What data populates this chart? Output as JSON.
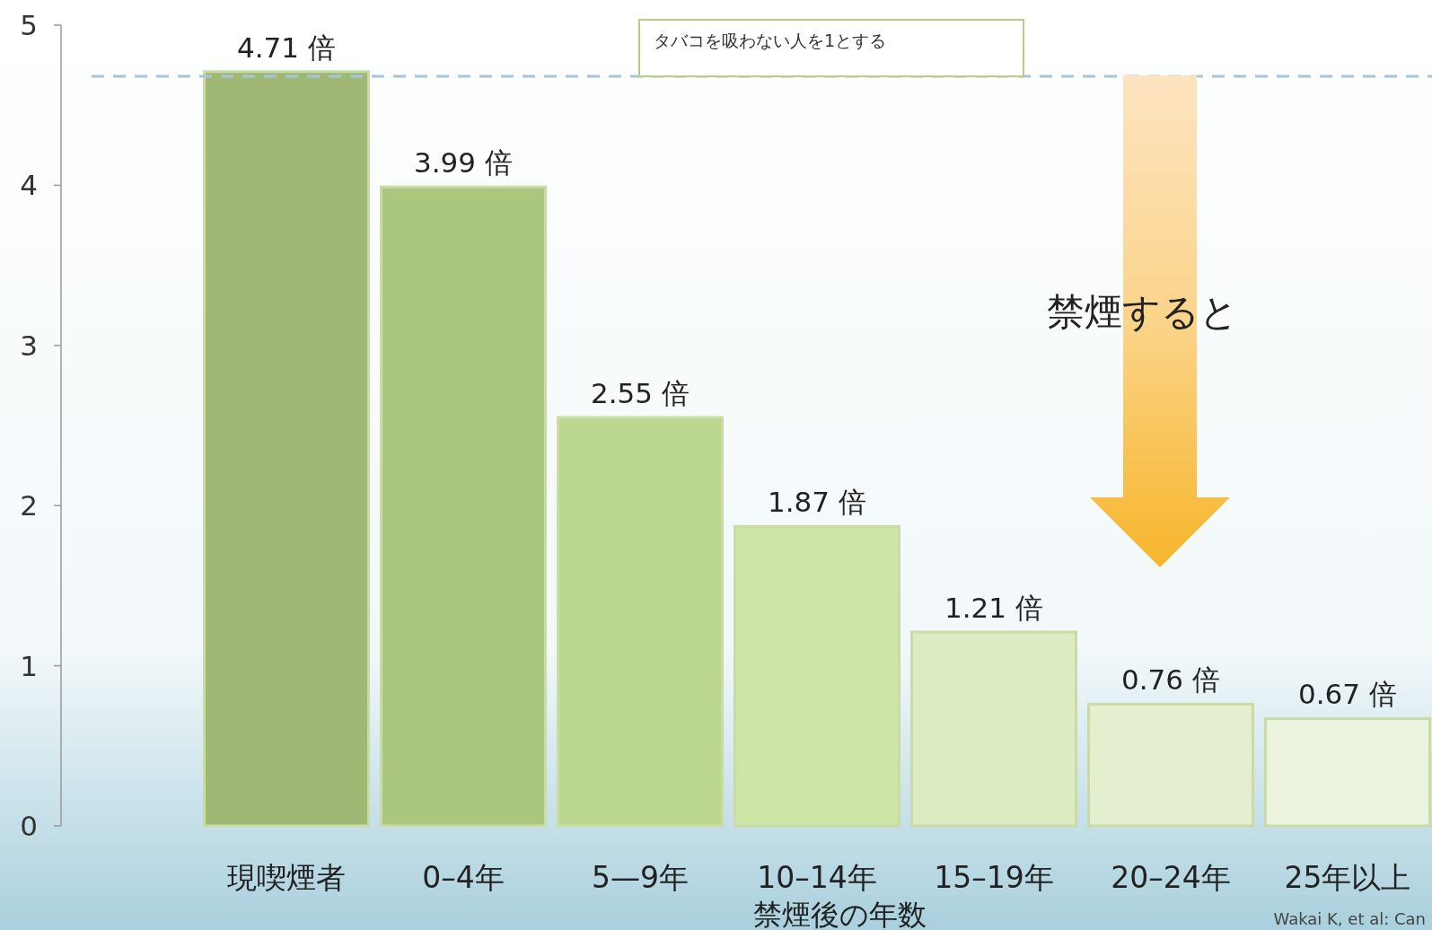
{
  "chart_data": {
    "type": "bar",
    "xlabel": "禁煙後の年数",
    "categories": [
      "現喫煙者",
      "0–4年",
      "5—9年",
      "10–14年",
      "15–19年",
      "20–24年",
      "25年以上"
    ],
    "values": [
      4.71,
      3.99,
      2.55,
      1.87,
      1.21,
      0.76,
      0.67
    ],
    "colors": [
      "#9fb874",
      "#abc77e",
      "#bcd890",
      "#cde5a6",
      "#dcebc2",
      "#e4efd0",
      "#ebf2dd"
    ],
    "value_labels": [
      "4.71 倍",
      "3.99 倍",
      "2.55 倍",
      "1.87 倍",
      "1.21 倍",
      "0.76 倍",
      "0.67 倍"
    ],
    "ylim": [
      0,
      5
    ],
    "yticks": [
      0,
      1,
      2,
      3,
      4,
      5
    ],
    "ref_lines": [
      {
        "axis": "y",
        "value": 4.68,
        "color": "#a9c4d8",
        "line_style": "dashed"
      }
    ],
    "annotations": [
      "タバコを吸わない人を1とする",
      "禁煙すると",
      "Wakai K, et al: Can"
    ],
    "grid": false
  }
}
